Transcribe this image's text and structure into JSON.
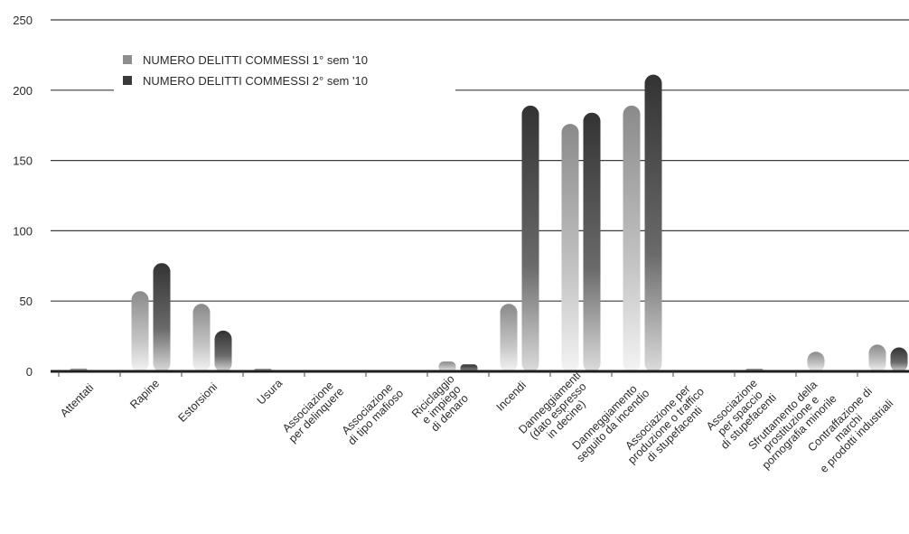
{
  "chart_data": {
    "type": "bar",
    "ylim": [
      0,
      250
    ],
    "yticks": [
      0,
      50,
      100,
      150,
      200,
      250
    ],
    "grid": true,
    "legend_position": "top-left",
    "categories": [
      [
        "Attentati"
      ],
      [
        "Rapine"
      ],
      [
        "Estorsioni"
      ],
      [
        "Usura"
      ],
      [
        "Associazione",
        "per delinquere"
      ],
      [
        "Associazione",
        "di tipo mafioso"
      ],
      [
        "Riciclaggio",
        "e impiego",
        "di denaro"
      ],
      [
        "Incendi"
      ],
      [
        "Danneggiamenti",
        "(dato espresso",
        "in decine)"
      ],
      [
        "Danneggiamento",
        "seguito da incendio"
      ],
      [
        "Associazione per",
        "produzione o traffico",
        "di stupefacenti"
      ],
      [
        "Associazione",
        "per spaccio",
        "di stupefacenti"
      ],
      [
        "Sfruttamento della",
        "prostituzione e",
        "pornografia minorile"
      ],
      [
        "Contraffazione di",
        "marchi",
        "e prodotti industriali"
      ]
    ],
    "series": [
      {
        "name": "NUMERO DELITTI COMMESSI 1° sem '10",
        "color": "#8e8e8e",
        "values": [
          2,
          57,
          48,
          1,
          0,
          0,
          7,
          48,
          176,
          189,
          0,
          1,
          14,
          19
        ]
      },
      {
        "name": "NUMERO DELITTI COMMESSI 2° sem '10",
        "color": "#3a3a3a",
        "values": [
          0,
          77,
          29,
          0,
          0,
          0,
          5,
          189,
          184,
          211,
          0,
          0,
          0,
          17
        ]
      }
    ]
  }
}
